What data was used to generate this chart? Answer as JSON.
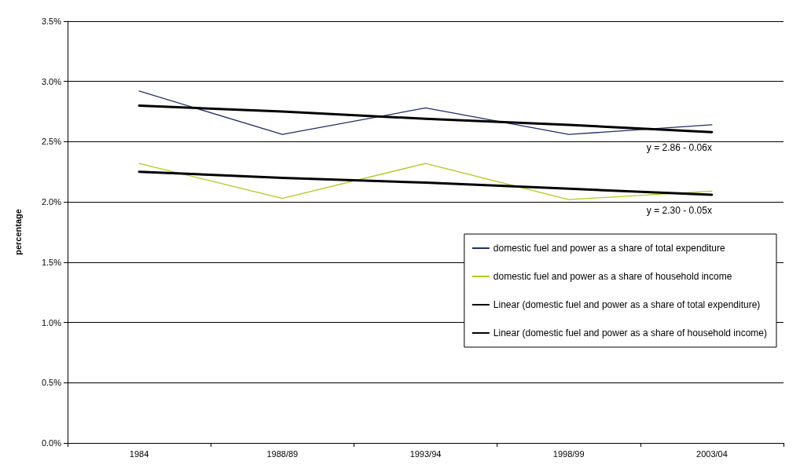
{
  "chart_data": {
    "type": "line",
    "ylabel": "percentage",
    "categories": [
      "1984",
      "1988/89",
      "1993/94",
      "1998/99",
      "2003/04"
    ],
    "series": [
      {
        "name": "domestic fuel and power as a share of total expenditure",
        "color": "#1f2f6b",
        "values": [
          2.92,
          2.56,
          2.78,
          2.56,
          2.64
        ]
      },
      {
        "name": "domestic fuel and power as a share of household income",
        "color": "#b5c81a",
        "values": [
          2.32,
          2.03,
          2.32,
          2.02,
          2.09
        ]
      },
      {
        "name": "Linear (domestic fuel and power as a share of total expenditure)",
        "color": "#000000",
        "values": [
          2.8,
          2.75,
          2.69,
          2.64,
          2.58
        ]
      },
      {
        "name": "Linear (domestic fuel and power as a share of household income)",
        "color": "#000000",
        "values": [
          2.25,
          2.2,
          2.16,
          2.11,
          2.06
        ]
      }
    ],
    "ylim": [
      0,
      3.5
    ],
    "yticks": [
      {
        "value": 0,
        "label": "0.0%"
      },
      {
        "value": 0.5,
        "label": "0.5%"
      },
      {
        "value": 1,
        "label": "1.0%"
      },
      {
        "value": 1.5,
        "label": "1.5%"
      },
      {
        "value": 2,
        "label": "2.0%"
      },
      {
        "value": 2.5,
        "label": "2.5%"
      },
      {
        "value": 3,
        "label": "3.0%"
      },
      {
        "value": 3.5,
        "label": "3.5%"
      }
    ],
    "grid": "y",
    "legend": "right",
    "marker": "none",
    "line_style": "solid",
    "annotations": [
      {
        "text": "y = 2.86 - 0.06x",
        "x": "2003/04",
        "y": 2.58
      },
      {
        "text": "y = 2.30 - 0.05x",
        "x": "2003/04",
        "y": 2.06
      }
    ]
  }
}
